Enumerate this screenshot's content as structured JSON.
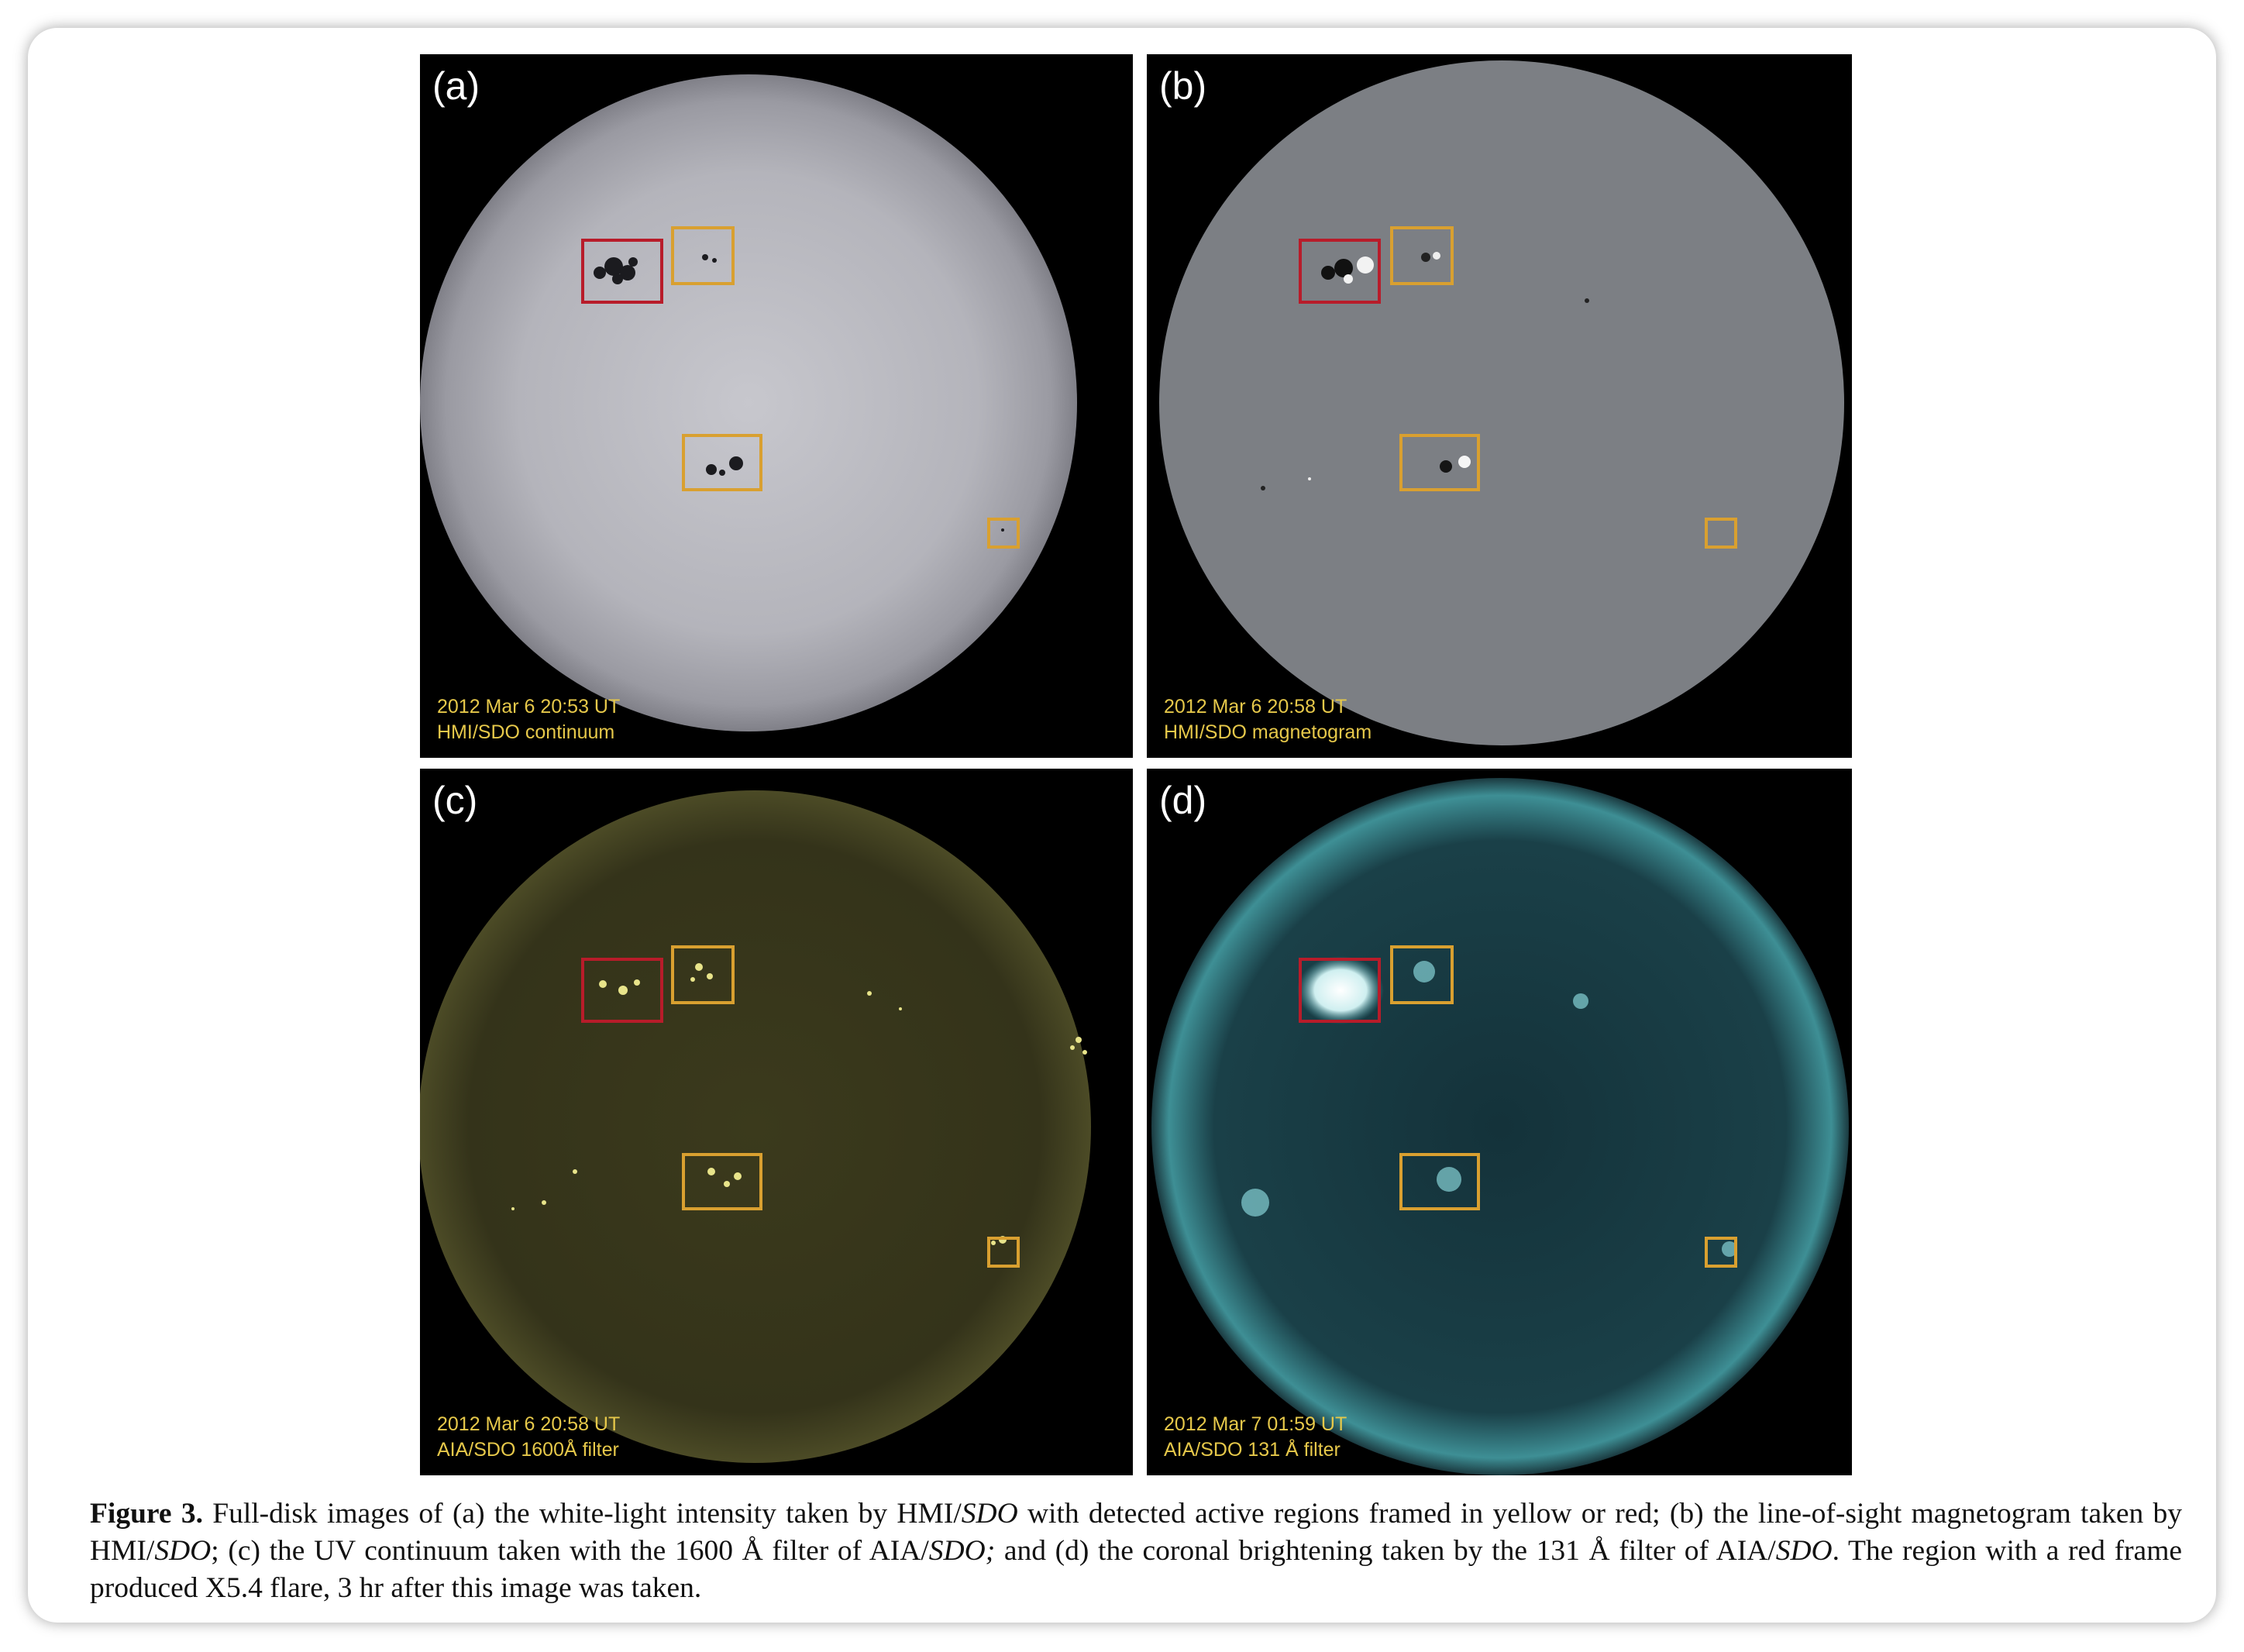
{
  "figure": {
    "panels": [
      {
        "id": "a",
        "letter": "(a)",
        "date_line": "2012 Mar 6  20:53 UT",
        "instrument_line": "HMI/SDO  continuum"
      },
      {
        "id": "b",
        "letter": "(b)",
        "date_line": "2012 Mar 6   20:58 UT",
        "instrument_line": "HMI/SDO magnetogram"
      },
      {
        "id": "c",
        "letter": "(c)",
        "date_line": "2012 Mar 6   20:58 UT",
        "instrument_line": "AIA/SDO  1600Å filter"
      },
      {
        "id": "d",
        "letter": "(d)",
        "date_line": "2012 Mar 7 01:59 UT",
        "instrument_line": "AIA/SDO 131 Å filter"
      }
    ],
    "frame_colors": {
      "red": "#b81c2a",
      "yellow": "#d9a030"
    },
    "caption": {
      "label": "Figure 3.",
      "t1": " Full-disk images of (a) the white-light intensity taken by HMI/",
      "i1": "SDO",
      "t2": " with detected active regions framed in yellow or red; (b) the line-of-sight magnetogram taken by HMI/",
      "i2": "SDO",
      "t3": "; (c) the UV continuum taken with the 1600 Å filter of AIA/",
      "i3": "SDO;",
      "t4": " and (d) the coronal brightening taken by the 131 Å filter of AIA/",
      "i4": "SDO",
      "t5": ". The region with a red frame produced X5.4 flare, 3 hr after this image was taken."
    }
  }
}
